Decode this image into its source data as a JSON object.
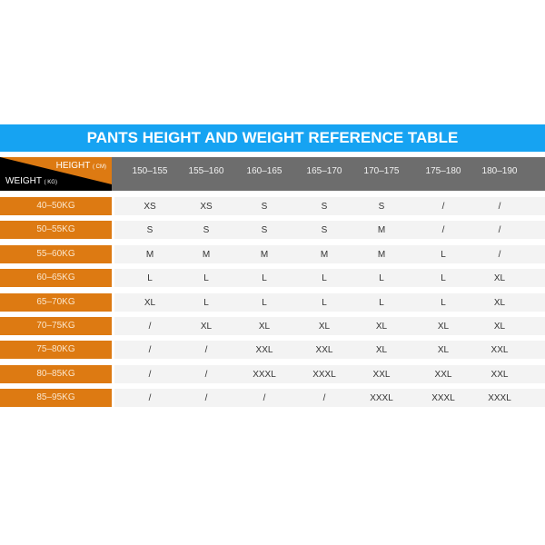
{
  "title": "PANTS HEIGHT AND WEIGHT REFERENCE TABLE",
  "corner": {
    "height_label": "HEIGHT",
    "height_unit": "( CM)",
    "weight_label": "WEIGHT",
    "weight_unit": "( KG)"
  },
  "heights": [
    "150–155",
    "155–160",
    "160–165",
    "165–170",
    "170–175",
    "175–180",
    "180–190"
  ],
  "rows": [
    {
      "weight": "40–50KG",
      "sizes": [
        "XS",
        "XS",
        "S",
        "S",
        "S",
        "/",
        "/"
      ]
    },
    {
      "weight": "50–55KG",
      "sizes": [
        "S",
        "S",
        "S",
        "S",
        "M",
        "/",
        "/"
      ]
    },
    {
      "weight": "55–60KG",
      "sizes": [
        "M",
        "M",
        "M",
        "M",
        "M",
        "L",
        "/"
      ]
    },
    {
      "weight": "60–65KG",
      "sizes": [
        "L",
        "L",
        "L",
        "L",
        "L",
        "L",
        "XL"
      ]
    },
    {
      "weight": "65–70KG",
      "sizes": [
        "XL",
        "L",
        "L",
        "L",
        "L",
        "L",
        "XL"
      ]
    },
    {
      "weight": "70–75KG",
      "sizes": [
        "/",
        "XL",
        "XL",
        "XL",
        "XL",
        "XL",
        "XL"
      ]
    },
    {
      "weight": "75–80KG",
      "sizes": [
        "/",
        "/",
        "XXL",
        "XXL",
        "XL",
        "XL",
        "XXL"
      ]
    },
    {
      "weight": "80–85KG",
      "sizes": [
        "/",
        "/",
        "XXXL",
        "XXXL",
        "XXL",
        "XXL",
        "XXL"
      ]
    },
    {
      "weight": "85–95KG",
      "sizes": [
        "/",
        "/",
        "/",
        "/",
        "XXXL",
        "XXXL",
        "XXXL"
      ]
    }
  ],
  "colors": {
    "title_bg": "#16a3f2",
    "header_bg": "#6d6d6d",
    "weight_bg": "#dd7a12",
    "cell_bg": "#f3f3f3"
  }
}
